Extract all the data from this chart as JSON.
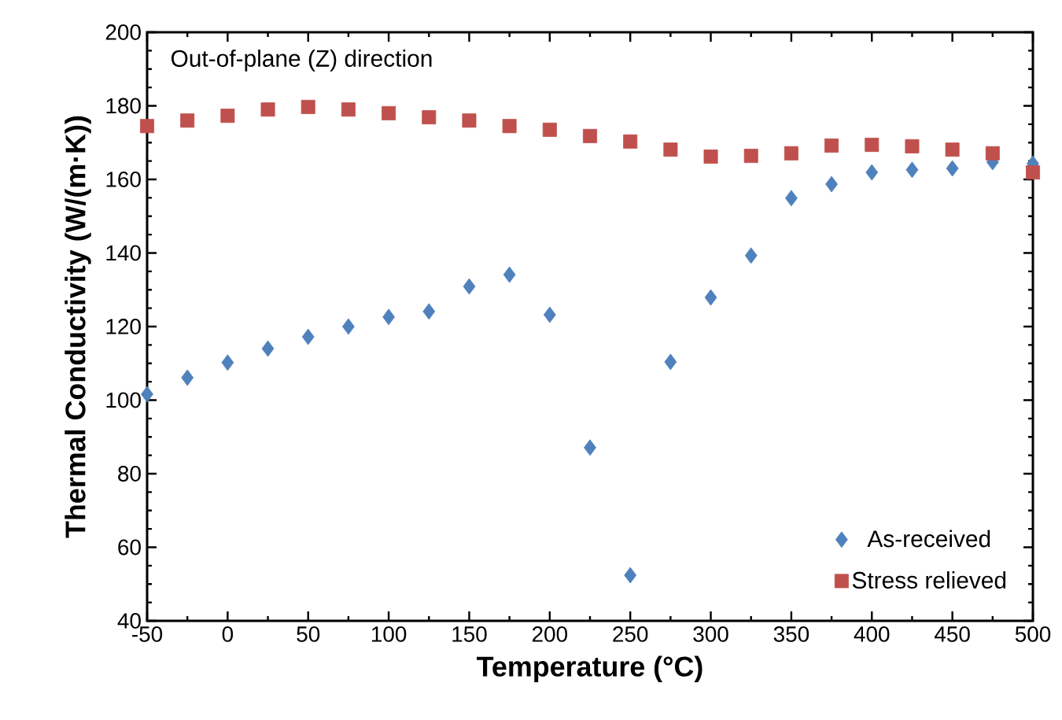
{
  "chart_data": {
    "type": "scatter",
    "xlabel": "Temperature (°C)",
    "ylabel": "Thermal Conductivity (W/(m·K))",
    "annotations": [
      "Out-of-plane (Z) direction"
    ],
    "x": [
      -50,
      -25,
      0,
      25,
      50,
      75,
      100,
      125,
      150,
      175,
      200,
      225,
      250,
      275,
      300,
      325,
      350,
      375,
      400,
      425,
      450,
      475,
      500
    ],
    "series": [
      {
        "name": "As-received",
        "color": "#4f81bd",
        "marker": "diamond",
        "values": [
          101.6,
          106.1,
          110.2,
          114.0,
          117.2,
          120.0,
          122.6,
          124.1,
          130.9,
          134.1,
          123.2,
          87.1,
          52.4,
          110.4,
          127.9,
          139.3,
          154.9,
          158.7,
          161.9,
          162.6,
          163.0,
          164.7,
          164.3
        ]
      },
      {
        "name": "Stress relieved",
        "color": "#c0504d",
        "marker": "square",
        "values": [
          174.5,
          176.0,
          177.3,
          179.0,
          179.7,
          179.0,
          178.0,
          176.9,
          176.0,
          174.5,
          173.5,
          171.8,
          170.3,
          168.1,
          166.2,
          166.4,
          167.1,
          169.2,
          169.4,
          169.0,
          168.1,
          167.1,
          161.9
        ]
      }
    ],
    "xlim": [
      -50,
      500
    ],
    "xticks": [
      -50,
      0,
      50,
      100,
      150,
      200,
      250,
      300,
      350,
      400,
      450,
      500
    ],
    "ylim": [
      40,
      200
    ],
    "yticks": [
      40,
      60,
      80,
      100,
      120,
      140,
      160,
      180,
      200
    ],
    "grid": false,
    "legend": "bottom right"
  }
}
